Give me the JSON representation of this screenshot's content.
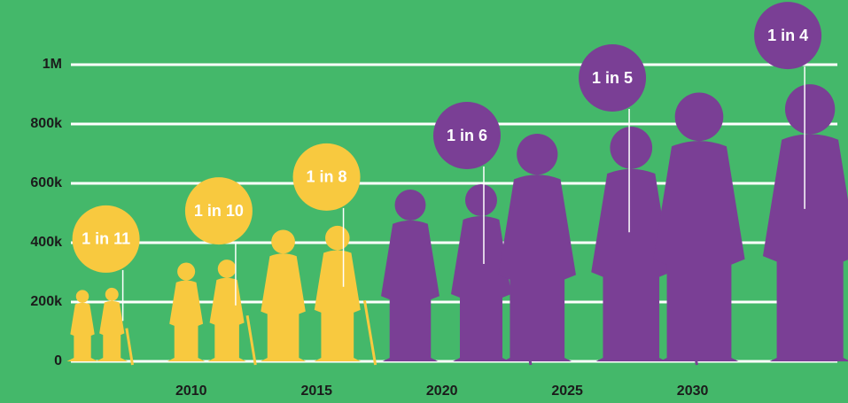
{
  "chart_data": {
    "type": "pictograph",
    "x": [
      2006.6,
      2011.1,
      2015.4,
      2021.0,
      2026.8,
      2033.8
    ],
    "values": [
      248000,
      343000,
      457000,
      597000,
      791000,
      934000
    ],
    "annotations": [
      "1 in 11",
      "1 in 10",
      "1 in 8",
      "1 in 6",
      "1 in 5",
      "1 in 4"
    ],
    "colors": [
      "#f8c93f",
      "#f8c93f",
      "#f8c93f",
      "#7a3f95",
      "#7a3f95",
      "#7a3f95"
    ],
    "xlim": [
      2005.2,
      2036.2
    ],
    "xticks": [
      2010,
      2015,
      2020,
      2025,
      2030
    ],
    "ylim": [
      0,
      1000000
    ],
    "yticks": [
      0,
      {
        "value": 200000,
        "label": "200k"
      },
      {
        "value": 400000,
        "label": "400k"
      },
      {
        "value": 600000,
        "label": "600k"
      },
      {
        "value": 800000,
        "label": "800k"
      },
      {
        "value": 1000000,
        "label": "1M"
      }
    ],
    "grid": true
  }
}
